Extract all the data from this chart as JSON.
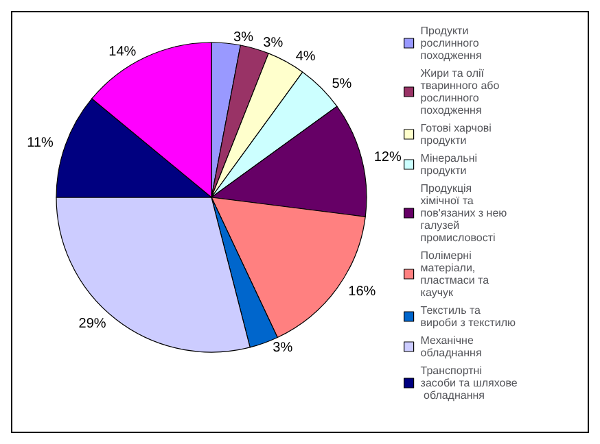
{
  "chart_data": {
    "type": "pie",
    "categories": [
      "Продукти рослинного походження",
      "Жири та олії тваринного або рослинного походження",
      "Готові харчові продукти",
      "Мінеральні продукти",
      "Продукція хімічної та пов'язаних з нею галузей промисловості",
      "Полімерні матеріали, пластмаси та каучук",
      "Текстиль та вироби з текстилю",
      "Механічне обладнання",
      "Транспортні засоби та шляхове обладнання",
      null
    ],
    "values": [
      3,
      3,
      4,
      5,
      12,
      16,
      3,
      29,
      11,
      14
    ],
    "value_labels": [
      "3%",
      "3%",
      "4%",
      "5%",
      "12%",
      "16%",
      "3%",
      "29%",
      "11%",
      "14%"
    ],
    "colors": [
      "#9999ff",
      "#993366",
      "#ffffcc",
      "#ccffff",
      "#660066",
      "#ff8080",
      "#0066cc",
      "#ccccff",
      "#000080",
      "#ff00ff"
    ],
    "legend": "right"
  }
}
